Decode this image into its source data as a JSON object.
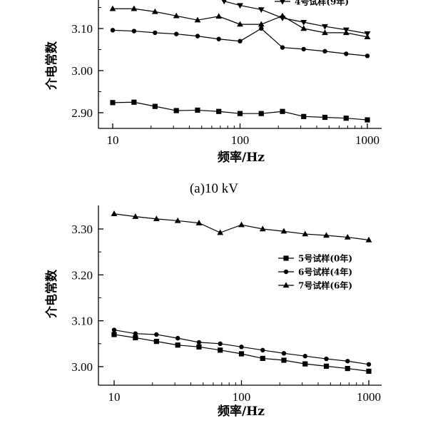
{
  "chart_data": [
    {
      "type": "line",
      "caption": "(a)10 kV",
      "xlabel": "频率/Hz",
      "ylabel": "介电常数",
      "xscale": "log",
      "xlim": [
        10,
        1000
      ],
      "ylim": [
        2.87,
        3.21
      ],
      "yticks": [
        "2.90",
        "3.00",
        "3.10"
      ],
      "xticks": [
        "10",
        "100",
        "1000"
      ],
      "legend": {
        "position": "top-right",
        "entries": [
          "4号试样(9年)"
        ]
      },
      "series": [
        {
          "marker": "triangle-up",
          "x": [
            10,
            14.7,
            21.5,
            31.6,
            46.4,
            68.1,
            100,
            146.8,
            215.4,
            316.2,
            464.2,
            681.3,
            1000
          ],
          "values": [
            3.147,
            3.147,
            3.14,
            3.13,
            3.12,
            3.129,
            3.11,
            3.11,
            3.13,
            3.1,
            3.09,
            3.09,
            3.08
          ]
        },
        {
          "name": "4号试样(9年)",
          "marker": "triangle-down",
          "x": [
            75,
            100,
            146.8,
            215.4,
            316.2,
            464.2,
            681.3,
            1000
          ],
          "values": [
            3.165,
            3.155,
            3.145,
            3.125,
            3.115,
            3.105,
            3.097,
            3.088
          ]
        },
        {
          "marker": "circle",
          "x": [
            10,
            14.7,
            21.5,
            31.6,
            46.4,
            68.1,
            100,
            146.8,
            215.4,
            316.2,
            464.2,
            681.3,
            1000
          ],
          "values": [
            3.096,
            3.094,
            3.09,
            3.087,
            3.082,
            3.075,
            3.07,
            3.1,
            3.055,
            3.051,
            3.046,
            3.04,
            3.035
          ]
        },
        {
          "marker": "square",
          "x": [
            10,
            14.7,
            21.5,
            31.6,
            46.4,
            68.1,
            100,
            146.8,
            215.4,
            316.2,
            464.2,
            681.3,
            1000
          ],
          "values": [
            2.924,
            2.925,
            2.915,
            2.905,
            2.906,
            2.903,
            2.898,
            2.898,
            2.903,
            2.891,
            2.889,
            2.887,
            2.883
          ]
        }
      ]
    },
    {
      "type": "line",
      "xlabel": "频率/Hz",
      "ylabel": "介电常数",
      "xscale": "log",
      "xlim": [
        10,
        1000
      ],
      "ylim": [
        2.97,
        3.355
      ],
      "yticks": [
        "3.00",
        "3.10",
        "3.20",
        "3.30"
      ],
      "xticks": [
        "10",
        "100",
        "1000"
      ],
      "legend": {
        "position": "right",
        "entries": [
          "5号试样(0年)",
          "6号试样(4年)",
          "7号试样(6年)"
        ]
      },
      "series": [
        {
          "name": "5号试样(0年)",
          "marker": "square",
          "x": [
            10,
            14.7,
            21.5,
            31.6,
            46.4,
            68.1,
            100,
            146.8,
            215.4,
            316.2,
            464.2,
            681.3,
            1000
          ],
          "values": [
            3.07,
            3.063,
            3.055,
            3.047,
            3.043,
            3.036,
            3.028,
            3.018,
            3.014,
            3.006,
            3.001,
            2.996,
            2.99
          ]
        },
        {
          "name": "6号试样(4年)",
          "marker": "circle",
          "x": [
            10,
            14.7,
            21.5,
            31.6,
            46.4,
            68.1,
            100,
            146.8,
            215.4,
            316.2,
            464.2,
            681.3,
            1000
          ],
          "values": [
            3.08,
            3.072,
            3.07,
            3.062,
            3.053,
            3.05,
            3.043,
            3.036,
            3.029,
            3.023,
            3.017,
            3.012,
            3.005
          ]
        },
        {
          "name": "7号试样(6年)",
          "marker": "triangle-up",
          "x": [
            10,
            14.7,
            21.5,
            31.6,
            46.4,
            68.1,
            100,
            146.8,
            215.4,
            316.2,
            464.2,
            681.3,
            1000
          ],
          "values": [
            3.333,
            3.327,
            3.322,
            3.318,
            3.313,
            3.292,
            3.309,
            3.3,
            3.295,
            3.289,
            3.286,
            3.282,
            3.276
          ]
        }
      ]
    }
  ]
}
